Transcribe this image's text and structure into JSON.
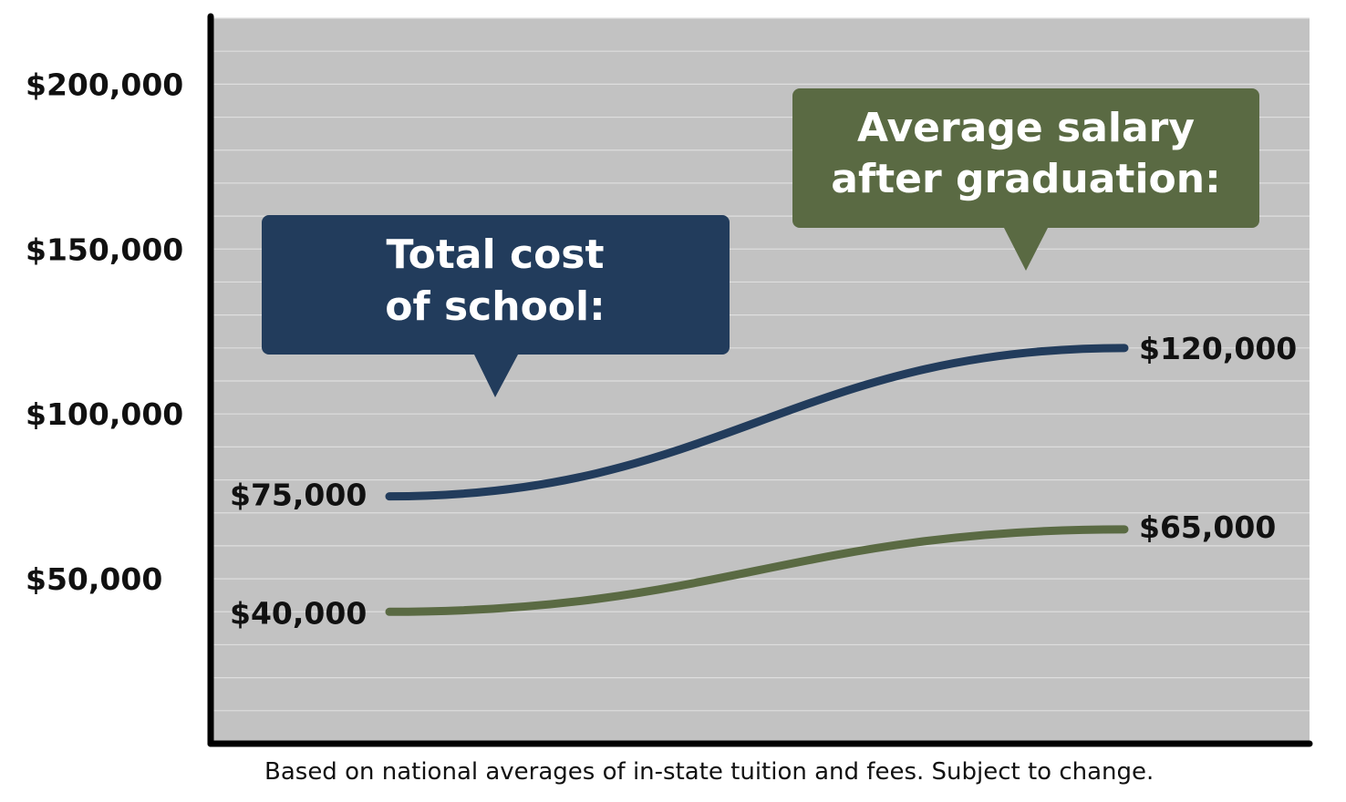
{
  "chart_data": {
    "type": "line",
    "x": [
      0,
      1
    ],
    "ylim": [
      0,
      220000
    ],
    "grid": true,
    "yticks": [
      {
        "value": 200000,
        "label": "$200,000"
      },
      {
        "value": 150000,
        "label": "$150,000"
      },
      {
        "value": 100000,
        "label": "$100,000"
      },
      {
        "value": 50000,
        "label": "$50,000"
      }
    ],
    "series": [
      {
        "name": "Total cost of school:",
        "name_lines": [
          "Total cost",
          "of school:"
        ],
        "values": [
          75000,
          120000
        ],
        "value_labels": [
          "$75,000",
          "$120,000"
        ],
        "color": "#223c5c"
      },
      {
        "name": "Average salary after graduation:",
        "name_lines": [
          "Average salary",
          "after graduation:"
        ],
        "values": [
          40000,
          65000
        ],
        "value_labels": [
          "$40,000",
          "$65,000"
        ],
        "color": "#5a6a43"
      }
    ],
    "colors": {
      "plot_background": "#c2c2c2",
      "gridline": "#dedede",
      "axis": "#000000"
    }
  },
  "footnote": "Based on national averages of in-state tuition and fees. Subject to change."
}
